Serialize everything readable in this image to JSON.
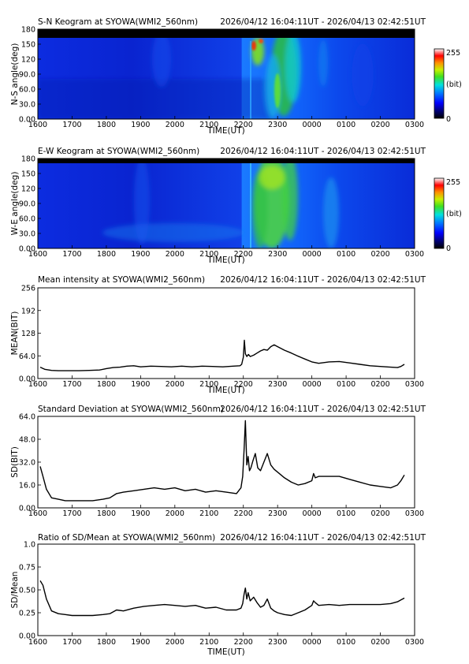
{
  "figure": {
    "time_range": "2026/04/12 16:04:11UT - 2026/04/13 02:42:51UT"
  },
  "chart_data": [
    {
      "type": "heatmap",
      "id": "sn",
      "title": "S-N Keogram at SYOWA(WMI2_560nm)",
      "time_range": "2026/04/12 16:04:11UT - 2026/04/13 02:42:51UT",
      "xlabel": "TIME(UT)",
      "ylabel": "N-S angle(deg)",
      "x_ticks": [
        "1600",
        "1700",
        "1800",
        "1900",
        "2000",
        "2100",
        "2200",
        "2300",
        "0000",
        "0100",
        "0200",
        "0300"
      ],
      "y_ticks": [
        "0.00",
        "30.0",
        "60.0",
        "90.0",
        "120",
        "150",
        "180"
      ],
      "ylim": [
        0,
        180
      ],
      "colorbar": {
        "min": "0",
        "max": "255",
        "unit": "(bit)"
      }
    },
    {
      "type": "heatmap",
      "id": "ew",
      "title": "E-W Keogram at SYOWA(WMI2_560nm)",
      "time_range": "2026/04/12 16:04:11UT - 2026/04/13 02:42:51UT",
      "xlabel": "TIME(UT)",
      "ylabel": "W-E angle(deg)",
      "x_ticks": [
        "1600",
        "1700",
        "1800",
        "1900",
        "2000",
        "2100",
        "2200",
        "2300",
        "0000",
        "0100",
        "0200",
        "0300"
      ],
      "y_ticks": [
        "0.00",
        "30.0",
        "60.0",
        "90.0",
        "120",
        "150",
        "180"
      ],
      "ylim": [
        0,
        180
      ],
      "colorbar": {
        "min": "0",
        "max": "255",
        "unit": "(bit)"
      }
    },
    {
      "type": "line",
      "id": "mean",
      "title": "Mean intensity at SYOWA(WMI2_560nm)",
      "time_range": "2026/04/12 16:04:11UT - 2026/04/13 02:42:51UT",
      "xlabel": "TIME(UT)",
      "ylabel": "MEAN(BIT)",
      "x_ticks": [
        "1600",
        "1700",
        "1800",
        "1900",
        "2000",
        "2100",
        "2200",
        "2300",
        "0000",
        "0100",
        "0200",
        "0300"
      ],
      "y_ticks": [
        "0.00",
        "64.0",
        "128",
        "192",
        "256"
      ],
      "ylim": [
        0,
        256
      ],
      "xlim_hours_after_1600": [
        0,
        11
      ],
      "x": [
        0.07,
        0.2,
        0.4,
        0.6,
        0.8,
        1.0,
        1.2,
        1.5,
        1.8,
        2.0,
        2.2,
        2.4,
        2.6,
        2.8,
        3.0,
        3.3,
        3.6,
        3.9,
        4.2,
        4.5,
        4.8,
        5.1,
        5.4,
        5.7,
        5.9,
        5.95,
        6.0,
        6.03,
        6.06,
        6.1,
        6.15,
        6.2,
        6.3,
        6.4,
        6.5,
        6.6,
        6.7,
        6.8,
        6.9,
        7.0,
        7.2,
        7.4,
        7.6,
        7.8,
        8.0,
        8.2,
        8.5,
        8.8,
        9.1,
        9.4,
        9.7,
        10.0,
        10.3,
        10.5,
        10.6,
        10.7
      ],
      "y": [
        32,
        26,
        23,
        22,
        22,
        22,
        22,
        23,
        24,
        28,
        31,
        32,
        35,
        36,
        33,
        35,
        34,
        33,
        35,
        33,
        35,
        34,
        33,
        35,
        36,
        40,
        60,
        108,
        70,
        62,
        68,
        62,
        66,
        72,
        78,
        82,
        80,
        90,
        95,
        90,
        80,
        72,
        63,
        55,
        47,
        43,
        47,
        48,
        44,
        40,
        36,
        34,
        32,
        31,
        34,
        40
      ]
    },
    {
      "type": "line",
      "id": "sd",
      "title": "Standard Deviation at SYOWA(WMI2_560nm)",
      "time_range": "2026/04/12 16:04:11UT - 2026/04/13 02:42:51UT",
      "xlabel": "",
      "ylabel": "SD(BIT)",
      "x_ticks": [
        "1600",
        "1700",
        "1800",
        "1900",
        "2000",
        "2100",
        "2200",
        "2300",
        "0000",
        "0100",
        "0200",
        "0300"
      ],
      "y_ticks": [
        "0.00",
        "16.0",
        "32.0",
        "48.0",
        "64.0"
      ],
      "ylim": [
        0,
        64
      ],
      "xlim_hours_after_1600": [
        0,
        11
      ],
      "x": [
        0.07,
        0.15,
        0.25,
        0.4,
        0.6,
        0.8,
        1.0,
        1.3,
        1.6,
        1.9,
        2.1,
        2.3,
        2.5,
        2.8,
        3.1,
        3.4,
        3.7,
        4.0,
        4.3,
        4.6,
        4.9,
        5.2,
        5.5,
        5.8,
        5.93,
        5.98,
        6.02,
        6.06,
        6.1,
        6.14,
        6.18,
        6.22,
        6.28,
        6.35,
        6.42,
        6.5,
        6.6,
        6.7,
        6.8,
        6.9,
        7.0,
        7.2,
        7.4,
        7.6,
        7.8,
        8.0,
        8.05,
        8.1,
        8.2,
        8.5,
        8.8,
        9.1,
        9.4,
        9.7,
        10.0,
        10.3,
        10.5,
        10.6,
        10.7
      ],
      "y": [
        29,
        22,
        13,
        7,
        6,
        5,
        5,
        5,
        5,
        6,
        7,
        10,
        11,
        12,
        13,
        14,
        13,
        14,
        12,
        13,
        11,
        12,
        11,
        10,
        14,
        22,
        40,
        61,
        30,
        36,
        26,
        28,
        33,
        38,
        28,
        26,
        32,
        38,
        30,
        27,
        25,
        21,
        18,
        16,
        17,
        19,
        24,
        21,
        22,
        22,
        22,
        20,
        18,
        16,
        15,
        14,
        16,
        19,
        23
      ]
    },
    {
      "type": "line",
      "id": "ratio",
      "title": "Ratio of SD/Mean at SYOWA(WMI2_560nm)",
      "time_range": "2026/04/12 16:04:11UT - 2026/04/13 02:42:51UT",
      "xlabel": "TIME(UT)",
      "ylabel": "SD/Mean",
      "x_ticks": [
        "1600",
        "1700",
        "1800",
        "1900",
        "2000",
        "2100",
        "2200",
        "2300",
        "0000",
        "0100",
        "0200",
        "0300"
      ],
      "y_ticks": [
        "0.00",
        "0.25",
        "0.50",
        "0.75",
        "1.0"
      ],
      "ylim": [
        0,
        1.0
      ],
      "xlim_hours_after_1600": [
        0,
        11
      ],
      "x": [
        0.07,
        0.15,
        0.25,
        0.4,
        0.6,
        0.8,
        1.0,
        1.3,
        1.6,
        1.9,
        2.1,
        2.3,
        2.5,
        2.8,
        3.1,
        3.4,
        3.7,
        4.0,
        4.3,
        4.6,
        4.9,
        5.2,
        5.5,
        5.8,
        5.93,
        5.98,
        6.02,
        6.06,
        6.1,
        6.14,
        6.2,
        6.3,
        6.4,
        6.5,
        6.6,
        6.7,
        6.8,
        6.9,
        7.0,
        7.2,
        7.4,
        7.6,
        7.8,
        8.0,
        8.05,
        8.1,
        8.2,
        8.5,
        8.8,
        9.1,
        9.4,
        9.7,
        10.0,
        10.3,
        10.5,
        10.6,
        10.7
      ],
      "y": [
        0.6,
        0.55,
        0.4,
        0.27,
        0.24,
        0.23,
        0.22,
        0.22,
        0.22,
        0.23,
        0.24,
        0.28,
        0.27,
        0.3,
        0.32,
        0.33,
        0.34,
        0.33,
        0.32,
        0.33,
        0.3,
        0.31,
        0.28,
        0.28,
        0.3,
        0.35,
        0.45,
        0.52,
        0.4,
        0.47,
        0.38,
        0.42,
        0.36,
        0.31,
        0.33,
        0.4,
        0.3,
        0.27,
        0.25,
        0.23,
        0.22,
        0.25,
        0.28,
        0.33,
        0.38,
        0.36,
        0.33,
        0.34,
        0.33,
        0.34,
        0.34,
        0.34,
        0.34,
        0.35,
        0.37,
        0.39,
        0.41
      ]
    }
  ]
}
